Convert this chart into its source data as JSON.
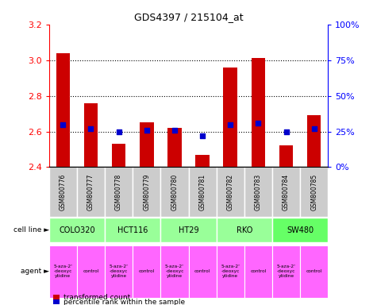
{
  "title": "GDS4397 / 215104_at",
  "samples": [
    "GSM800776",
    "GSM800777",
    "GSM800778",
    "GSM800779",
    "GSM800780",
    "GSM800781",
    "GSM800782",
    "GSM800783",
    "GSM800784",
    "GSM800785"
  ],
  "transformed_counts": [
    3.04,
    2.76,
    2.53,
    2.65,
    2.62,
    2.47,
    2.96,
    3.01,
    2.52,
    2.69
  ],
  "percentile_ranks": [
    30,
    27,
    25,
    26,
    26,
    22,
    30,
    31,
    25,
    27
  ],
  "ylim": [
    2.4,
    3.2
  ],
  "yticks": [
    2.4,
    2.6,
    2.8,
    3.0,
    3.2
  ],
  "right_yticks": [
    0,
    25,
    50,
    75,
    100
  ],
  "right_ylim_labels": [
    "0%",
    "25%",
    "50%",
    "75%",
    "100%"
  ],
  "bar_color": "#cc0000",
  "dot_color": "#0000cc",
  "bar_bottom": 2.4,
  "cell_lines": [
    {
      "label": "COLO320",
      "start": 0,
      "end": 2,
      "color": "#99ff99"
    },
    {
      "label": "HCT116",
      "start": 2,
      "end": 4,
      "color": "#99ff99"
    },
    {
      "label": "HT29",
      "start": 4,
      "end": 6,
      "color": "#99ff99"
    },
    {
      "label": "RKO",
      "start": 6,
      "end": 8,
      "color": "#99ff99"
    },
    {
      "label": "SW480",
      "start": 8,
      "end": 10,
      "color": "#66ff66"
    }
  ],
  "agents": [
    {
      "label": "5-aza-2'\n-deoxyc\nytidine",
      "start": 0,
      "end": 1,
      "color": "#ff66ff"
    },
    {
      "label": "control",
      "start": 1,
      "end": 2,
      "color": "#ff66ff"
    },
    {
      "label": "5-aza-2'\n-deoxyc\nytidine",
      "start": 2,
      "end": 3,
      "color": "#ff66ff"
    },
    {
      "label": "control",
      "start": 3,
      "end": 4,
      "color": "#ff66ff"
    },
    {
      "label": "5-aza-2'\n-deoxyc\nytidine",
      "start": 4,
      "end": 5,
      "color": "#ff66ff"
    },
    {
      "label": "control",
      "start": 5,
      "end": 6,
      "color": "#ff66ff"
    },
    {
      "label": "5-aza-2'\n-deoxyc\nytidine",
      "start": 6,
      "end": 7,
      "color": "#ff66ff"
    },
    {
      "label": "control",
      "start": 7,
      "end": 8,
      "color": "#ff66ff"
    },
    {
      "label": "5-aza-2'\n-deoxyc\nytidine",
      "start": 8,
      "end": 9,
      "color": "#ff66ff"
    },
    {
      "label": "control",
      "start": 9,
      "end": 10,
      "color": "#ff66ff"
    }
  ],
  "bg_color": "#ffffff",
  "sample_bg_color": "#cccccc",
  "grid_yticks": [
    2.6,
    2.8,
    3.0
  ]
}
